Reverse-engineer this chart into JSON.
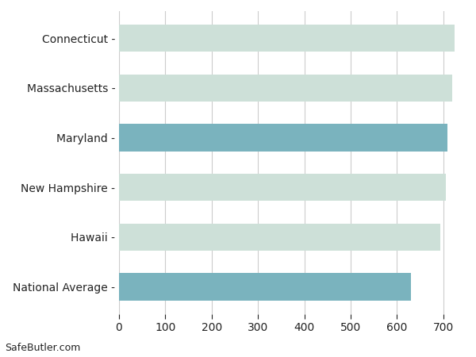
{
  "categories": [
    "National Average",
    "Hawaii",
    "New Hampshire",
    "Maryland",
    "Massachusetts",
    "Connecticut"
  ],
  "values": [
    630,
    693,
    706,
    710,
    720,
    725
  ],
  "bar_colors": [
    "#7ab3be",
    "#cde0d8",
    "#cde0d8",
    "#7ab3be",
    "#cde0d8",
    "#cde0d8"
  ],
  "xlim": [
    0,
    740
  ],
  "xticks": [
    0,
    100,
    200,
    300,
    400,
    500,
    600,
    700
  ],
  "background_color": "#ffffff",
  "grid_color": "#cccccc",
  "text_color": "#222222",
  "footer_text": "SafeButler.com",
  "bar_height": 0.55,
  "figsize": [
    6.0,
    4.5
  ],
  "dpi": 100
}
